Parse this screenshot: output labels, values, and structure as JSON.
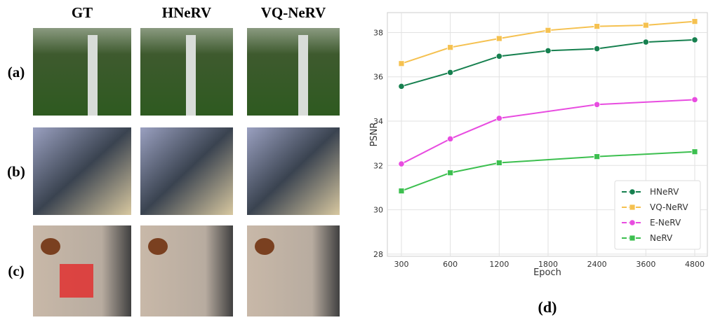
{
  "image_grid": {
    "columns": [
      "GT",
      "HNeRV",
      "VQ-NeRV"
    ],
    "rows": [
      "(a)",
      "(b)",
      "(c)"
    ]
  },
  "caption": "(d)",
  "chart_data": {
    "type": "line",
    "xlabel": "Epoch",
    "ylabel": "PSNR",
    "categories": [
      "300",
      "600",
      "1200",
      "1800",
      "2400",
      "3600",
      "4800"
    ],
    "ylim": [
      27.9,
      38.9
    ],
    "yticks": [
      28,
      30,
      32,
      34,
      36,
      38
    ],
    "grid": true,
    "legend": "lower right",
    "series": [
      {
        "name": "HNeRV",
        "color": "#16804f",
        "marker": "circle",
        "x": [
          "300",
          "600",
          "1200",
          "1800",
          "2400",
          "3600",
          "4800"
        ],
        "values": [
          35.57,
          36.2,
          36.93,
          37.18,
          37.27,
          37.57,
          37.67
        ]
      },
      {
        "name": "VQ-NeRV",
        "color": "#f5c150",
        "marker": "square",
        "x": [
          "300",
          "600",
          "1200",
          "1800",
          "2400",
          "3600",
          "4800"
        ],
        "values": [
          36.6,
          37.33,
          37.73,
          38.1,
          38.28,
          38.33,
          38.5
        ]
      },
      {
        "name": "E-NeRV",
        "color": "#e84ce0",
        "marker": "circle",
        "x": [
          "300",
          "600",
          "1200",
          "2400",
          "4800"
        ],
        "values": [
          32.07,
          33.2,
          34.13,
          34.75,
          34.97
        ]
      },
      {
        "name": "NeRV",
        "color": "#3cbf4f",
        "marker": "square",
        "x": [
          "300",
          "600",
          "1200",
          "2400",
          "4800"
        ],
        "values": [
          30.85,
          31.67,
          32.12,
          32.4,
          32.62
        ]
      }
    ]
  }
}
